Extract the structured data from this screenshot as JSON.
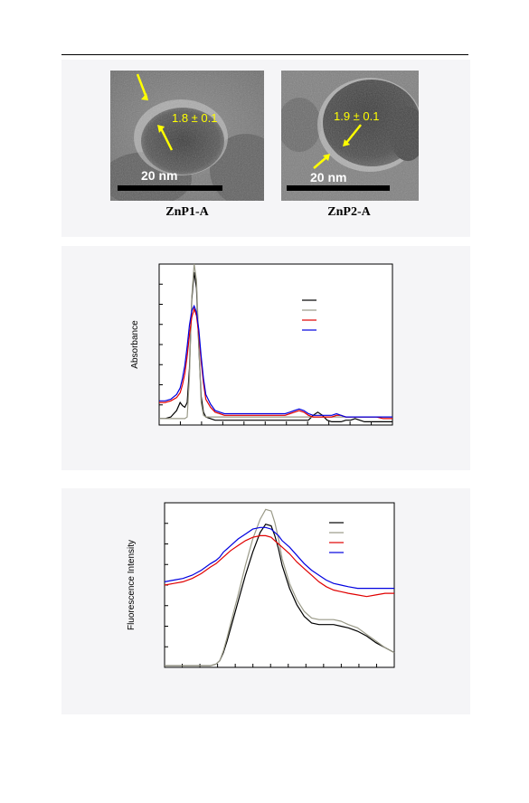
{
  "figure_a": {
    "images": [
      {
        "measurement": "1.8 ± 0.1",
        "scale_bar": "20 nm",
        "caption": "ZnP1-A"
      },
      {
        "measurement": "1.9 ± 0.1",
        "scale_bar": "20 nm",
        "caption": "ZnP2-A"
      }
    ]
  },
  "chart_data": [
    {
      "type": "line",
      "ylabel": "Absorbance",
      "xlabel": "",
      "grid": false,
      "legend_placement": "top-right",
      "x": [
        0,
        5,
        10,
        15,
        18,
        20,
        22,
        24,
        26,
        28,
        30,
        32,
        34,
        36,
        38,
        40,
        44,
        48,
        52,
        56,
        60,
        66,
        72,
        78,
        84,
        90,
        96,
        102,
        108,
        112,
        116,
        120,
        124,
        128,
        132,
        136,
        140,
        144,
        148,
        152,
        156,
        160,
        164,
        168,
        172,
        176,
        180,
        186,
        192,
        200
      ],
      "ylim": [
        0,
        100
      ],
      "series": [
        {
          "color": "#000000",
          "values": [
            4,
            4,
            5,
            9,
            14,
            12,
            11,
            14,
            35,
            78,
            95,
            85,
            48,
            18,
            8,
            5,
            4,
            3,
            3,
            3,
            3,
            3,
            3,
            3,
            3,
            3,
            3,
            3,
            3,
            3,
            3,
            3,
            3,
            3,
            6,
            8,
            6,
            3,
            2,
            2,
            2,
            3,
            3,
            4,
            3,
            2,
            2,
            2,
            2,
            2
          ]
        },
        {
          "color": "#9a9a88",
          "values": [
            4,
            4,
            4,
            4,
            4,
            4,
            4,
            5,
            30,
            80,
            100,
            90,
            50,
            14,
            6,
            5,
            5,
            5,
            5,
            5,
            5,
            5,
            5,
            5,
            5,
            5,
            5,
            5,
            5,
            5,
            5,
            5,
            5,
            5,
            5,
            5,
            5,
            5,
            5,
            5,
            5,
            5,
            5,
            5,
            5,
            5,
            5,
            5,
            5,
            5
          ]
        },
        {
          "color": "#e00000",
          "values": [
            14,
            14,
            15,
            17,
            20,
            25,
            32,
            43,
            56,
            67,
            72,
            68,
            56,
            40,
            26,
            16,
            11,
            8,
            7,
            6,
            6,
            6,
            6,
            6,
            6,
            6,
            6,
            6,
            6,
            7,
            8,
            9,
            8,
            6,
            5,
            5,
            5,
            5,
            5,
            6,
            6,
            5,
            5,
            5,
            5,
            5,
            5,
            5,
            4,
            4
          ]
        },
        {
          "color": "#0000e0",
          "values": [
            15,
            15,
            16,
            19,
            23,
            29,
            37,
            49,
            62,
            71,
            74,
            70,
            59,
            43,
            29,
            19,
            13,
            9,
            8,
            7,
            7,
            7,
            7,
            7,
            7,
            7,
            7,
            7,
            7,
            8,
            9,
            10,
            9,
            7,
            6,
            6,
            6,
            6,
            6,
            7,
            6,
            5,
            5,
            5,
            5,
            5,
            5,
            5,
            5,
            5
          ]
        }
      ]
    },
    {
      "type": "line",
      "ylabel": "Fluorescence Intensity",
      "xlabel": "",
      "grid": false,
      "legend_placement": "top-right",
      "x": [
        0,
        10,
        20,
        30,
        40,
        50,
        56,
        60,
        64,
        68,
        72,
        80,
        88,
        96,
        104,
        110,
        116,
        120,
        124,
        128,
        136,
        144,
        152,
        160,
        168,
        176,
        184,
        192,
        200,
        210,
        220,
        230,
        240,
        250
      ],
      "ylim": [
        0,
        100
      ],
      "series": [
        {
          "color": "#000000",
          "values": [
            1,
            1,
            1,
            1,
            1,
            1,
            2,
            4,
            9,
            16,
            24,
            40,
            56,
            70,
            82,
            87,
            86,
            80,
            72,
            62,
            48,
            38,
            31,
            27,
            26,
            26,
            26,
            25,
            24,
            22,
            19,
            15,
            12,
            9
          ]
        },
        {
          "color": "#9a9a88",
          "values": [
            1,
            1,
            1,
            1,
            1,
            1,
            2,
            4,
            10,
            18,
            27,
            44,
            62,
            78,
            90,
            96,
            95,
            88,
            78,
            66,
            51,
            41,
            34,
            30,
            29,
            29,
            29,
            28,
            26,
            24,
            20,
            16,
            12,
            9
          ]
        },
        {
          "color": "#e00000",
          "values": [
            50,
            51,
            52,
            54,
            57,
            61,
            63,
            65,
            67,
            69,
            71,
            74,
            77,
            79,
            80,
            80,
            79,
            77,
            75,
            73,
            69,
            64,
            60,
            56,
            52,
            49,
            47,
            46,
            45,
            44,
            43,
            44,
            45,
            45
          ]
        },
        {
          "color": "#0000e0",
          "values": [
            52,
            53,
            54,
            56,
            59,
            63,
            65,
            67,
            70,
            72,
            74,
            78,
            81,
            84,
            85,
            85,
            84,
            82,
            80,
            77,
            73,
            68,
            63,
            59,
            56,
            53,
            51,
            50,
            49,
            48,
            48,
            48,
            48,
            48
          ]
        }
      ]
    }
  ]
}
